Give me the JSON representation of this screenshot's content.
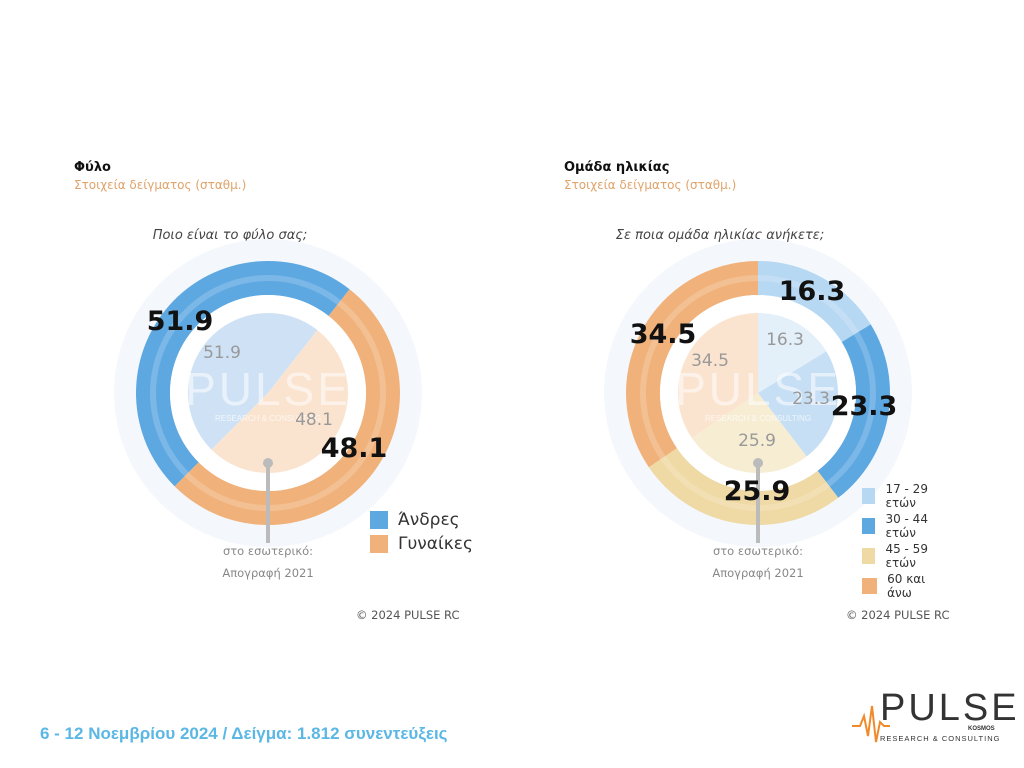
{
  "chart_data": [
    {
      "type": "donut",
      "title": "Φύλο",
      "subtitle": "Στοιχεία δείγματος  (σταθμ.)",
      "question": "Ποιο είναι το φύλο σας;",
      "series": [
        {
          "name": "sample",
          "values": [
            48.1,
            51.9
          ]
        },
        {
          "name": "census",
          "values": [
            48.1,
            51.9
          ]
        }
      ],
      "categories": [
        "Άνδρες",
        "Γυναίκες"
      ],
      "outer_labels": [
        "48.1",
        "51.9"
      ],
      "inner_labels": [
        "48.1",
        "51.9"
      ],
      "colors": [
        "#5ea8e2",
        "#f0b27a"
      ],
      "inner_colors": [
        "#cfe2f5",
        "#fbe4cf"
      ],
      "footnote_line1": "στο εσωτερικό:",
      "footnote_line2": "Απογραφή 2021",
      "copyright": "© 2024 PULSE RC",
      "legend_position": "bottom-right"
    },
    {
      "type": "donut",
      "title": "Ομάδα ηλικίας",
      "subtitle": "Στοιχεία δείγματος  (σταθμ.)",
      "question": "Σε ποια ομάδα ηλικίας ανήκετε;",
      "series": [
        {
          "name": "sample",
          "values": [
            16.3,
            23.3,
            25.9,
            34.5
          ]
        },
        {
          "name": "census",
          "values": [
            16.3,
            23.3,
            25.9,
            34.5
          ]
        }
      ],
      "categories": [
        "17 - 29 ετών",
        "30 - 44 ετών",
        "45 - 59 ετών",
        "60 και άνω"
      ],
      "outer_labels": [
        "16.3",
        "23.3",
        "25.9",
        "34.5"
      ],
      "inner_labels": [
        "16.3",
        "23.3",
        "25.9",
        "34.5"
      ],
      "colors": [
        "#b7d8f3",
        "#5ea8e2",
        "#efd9a4",
        "#f0b27a"
      ],
      "inner_colors": [
        "#e3eff9",
        "#c6dff4",
        "#f7edd3",
        "#fbe4cf"
      ],
      "footnote_line1": "στο εσωτερικό:",
      "footnote_line2": "Απογραφή 2021",
      "copyright": "© 2024 PULSE RC",
      "legend_position": "bottom-right"
    }
  ],
  "footer": {
    "text": "6 - 12  Νοεμβρίου  2024  /  Δείγμα:  1.812 συνεντεύξεις"
  },
  "logo": {
    "word": "PULSE",
    "kosmos": "KOSMOS",
    "tagline": "RESEARCH & CONSULTING",
    "watermark_word": "PULSE",
    "watermark_tagline": "RESEARCH & CONSULTING"
  }
}
